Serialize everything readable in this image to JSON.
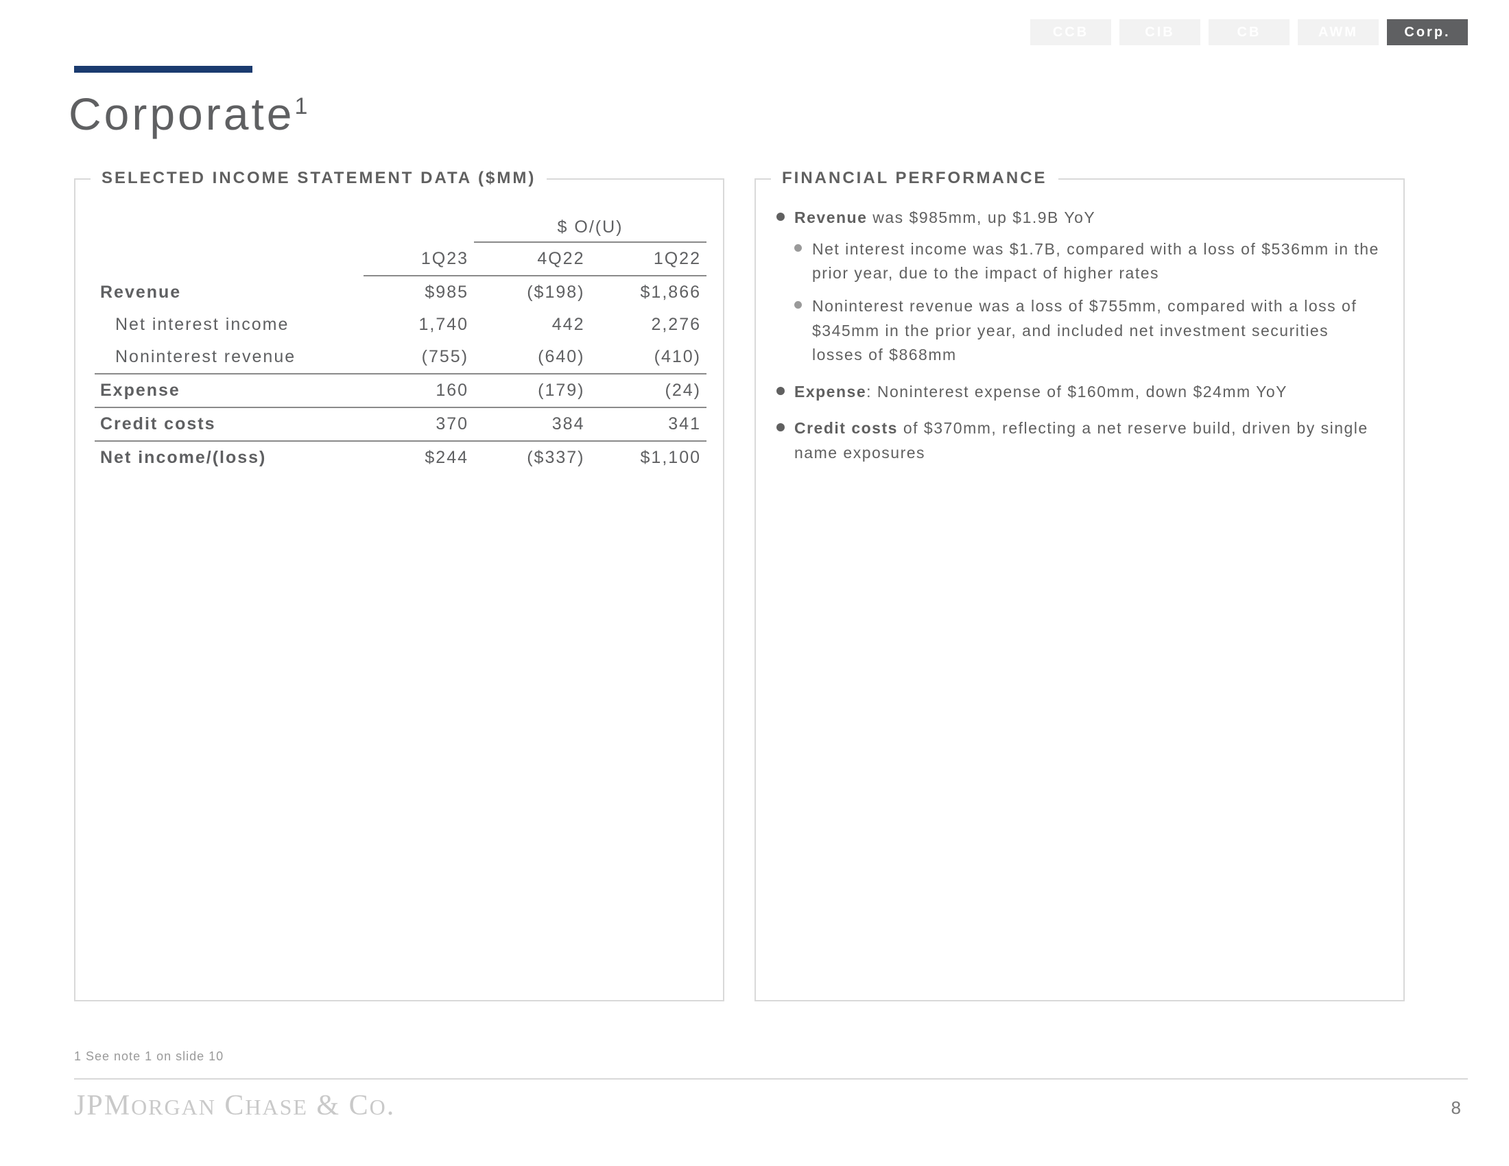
{
  "tabs": {
    "items": [
      "CCB",
      "CIB",
      "CB",
      "AWM",
      "Corp."
    ],
    "active_index": 4
  },
  "title": {
    "text": "Corporate",
    "sup": "1"
  },
  "panel_left": {
    "legend": "SELECTED INCOME STATEMENT DATA ($MM)",
    "ou_label": "$ O/(U)",
    "columns": [
      "1Q23",
      "4Q22",
      "1Q22"
    ],
    "rows": [
      {
        "label": "Revenue",
        "cells": [
          "$985",
          "($198)",
          "$1,866"
        ],
        "bold": true,
        "border": false,
        "indent": false
      },
      {
        "label": "Net interest income",
        "cells": [
          "1,740",
          "442",
          "2,276"
        ],
        "bold": false,
        "border": false,
        "indent": true
      },
      {
        "label": "Noninterest revenue",
        "cells": [
          "(755)",
          "(640)",
          "(410)"
        ],
        "bold": false,
        "border": true,
        "indent": true
      },
      {
        "label": "Expense",
        "cells": [
          "160",
          "(179)",
          "(24)"
        ],
        "bold": true,
        "border": true,
        "indent": false
      },
      {
        "label": "Credit costs",
        "cells": [
          "370",
          "384",
          "341"
        ],
        "bold": true,
        "border": true,
        "indent": false
      },
      {
        "label": "Net income/(loss)",
        "cells": [
          "$244",
          "($337)",
          "$1,100"
        ],
        "bold": true,
        "border": false,
        "indent": false
      }
    ]
  },
  "panel_right": {
    "legend": "FINANCIAL PERFORMANCE",
    "bullets": [
      {
        "html": "<b>Revenue</b> was $985mm, up $1.9B YoY",
        "sub": [
          "Net interest income was $1.7B, compared with a loss of $536mm in the prior year, due to the impact of higher rates",
          "Noninterest revenue was a loss of $755mm, compared with a loss of $345mm in the prior year, and included net investment securities losses of $868mm"
        ]
      },
      {
        "html": "<b>Expense</b>: Noninterest expense of $160mm, down $24mm YoY"
      },
      {
        "html": "<b>Credit costs</b> of $370mm, reflecting a net reserve build, driven by single name exposures"
      }
    ]
  },
  "footnote": "1 See note 1 on slide 10",
  "brand": "JPMorgan Chase & Co.",
  "page_number": "8",
  "colors": {
    "accent": "#1b3b6f",
    "text": "#5f6062",
    "border": "#d9d9d9",
    "tab_inactive_bg": "#f2f2f2",
    "tab_active_bg": "#5f6062"
  }
}
